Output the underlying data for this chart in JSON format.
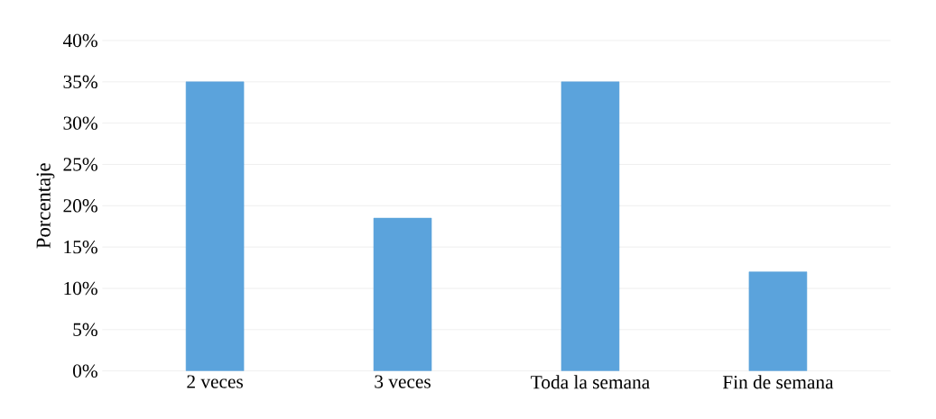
{
  "chart_data": {
    "type": "bar",
    "ylabel": "Porcentaje",
    "categories": [
      "2 veces",
      "3 veces",
      "Toda la semana",
      "Fin de semana"
    ],
    "values": [
      35,
      18.5,
      35,
      12
    ],
    "color": "#5ba3dc",
    "ylim": [
      0,
      40
    ],
    "yticks": [
      {
        "value": 0,
        "label": "0%"
      },
      {
        "value": 5,
        "label": "5%"
      },
      {
        "value": 10,
        "label": "10%"
      },
      {
        "value": 15,
        "label": "15%"
      },
      {
        "value": 20,
        "label": "20%"
      },
      {
        "value": 25,
        "label": "25%"
      },
      {
        "value": 30,
        "label": "30%"
      },
      {
        "value": 35,
        "label": "35%"
      },
      {
        "value": 40,
        "label": "40%"
      }
    ],
    "grid": "y"
  }
}
